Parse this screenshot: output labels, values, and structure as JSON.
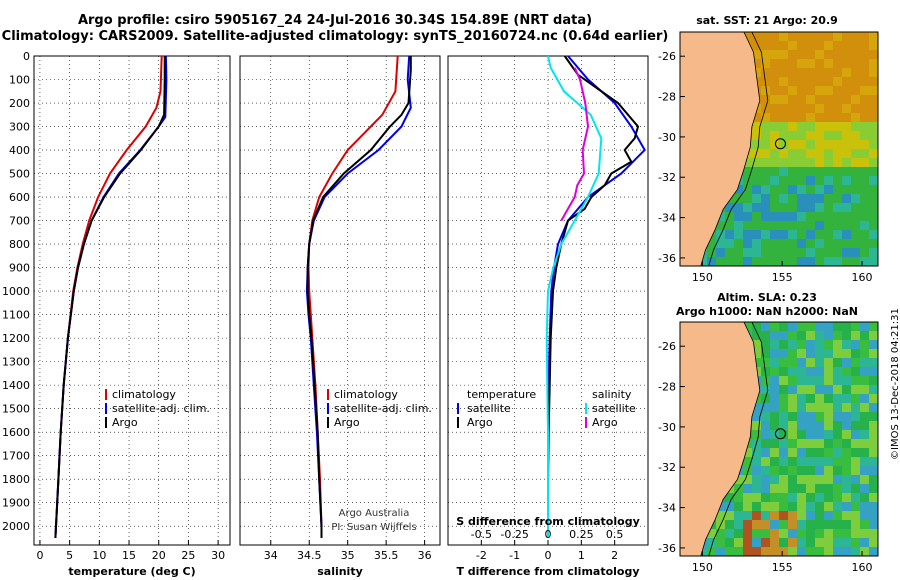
{
  "header": {
    "title_line1": "Argo profile: csiro 5905167_24 24-Jul-2016 30.34S 154.89E (NRT data)",
    "title_line2": "Climatology: CARS2009. Satellite-adjusted climatology: synTS_20160724.nc (0.64d earlier)"
  },
  "colors": {
    "climatology": "#dd0000",
    "satellite": "#0000ee",
    "argo": "#000000",
    "satellite_salinity": "#00e5f0",
    "argo_salinity": "#dd00dd",
    "land": "#f5b98a"
  },
  "chart_data": [
    {
      "type": "line",
      "name": "temperature",
      "xlabel": "temperature (deg C)",
      "ylabel": "",
      "xlim": [
        -1,
        32
      ],
      "ylim": [
        2080,
        0
      ],
      "xticks": [
        0,
        5,
        10,
        15,
        20,
        25,
        30
      ],
      "yticks": [
        0,
        100,
        200,
        300,
        400,
        500,
        600,
        700,
        800,
        900,
        1000,
        1100,
        1200,
        1300,
        1400,
        1500,
        1600,
        1700,
        1800,
        1900,
        2000
      ],
      "grid": true,
      "legend": [
        "climatology",
        "satellite-adj. clim.",
        "Argo"
      ],
      "series": [
        {
          "name": "climatology",
          "depth": [
            0,
            150,
            220,
            300,
            400,
            500,
            600,
            700,
            800,
            900,
            1000,
            1200,
            1400,
            1600,
            1800,
            2000,
            2050
          ],
          "values": [
            20.5,
            20.3,
            19.6,
            17.8,
            14.6,
            11.8,
            9.8,
            8.3,
            7.2,
            6.3,
            5.6,
            4.7,
            4.0,
            3.5,
            3.1,
            2.7,
            2.6
          ]
        },
        {
          "name": "satellite-adj. clim.",
          "depth": [
            0,
            100,
            260,
            300,
            400,
            500,
            600,
            700,
            800,
            900,
            1000,
            1200,
            1400,
            1600,
            1800,
            2000,
            2050
          ],
          "values": [
            21.2,
            21.3,
            21.1,
            20.0,
            16.9,
            13.3,
            10.7,
            8.7,
            7.4,
            6.4,
            5.7,
            4.7,
            4.0,
            3.5,
            3.1,
            2.7,
            2.6
          ]
        },
        {
          "name": "Argo",
          "depth": [
            0,
            100,
            250,
            300,
            400,
            500,
            600,
            700,
            800,
            900,
            1000,
            1200,
            1400,
            1600,
            1800,
            2000,
            2050
          ],
          "values": [
            21.0,
            21.0,
            20.9,
            20.0,
            17.0,
            13.5,
            10.8,
            8.7,
            7.4,
            6.4,
            5.7,
            4.7,
            4.0,
            3.5,
            3.1,
            2.7,
            2.6
          ]
        }
      ]
    },
    {
      "type": "line",
      "name": "salinity",
      "xlabel": "salinity",
      "xlim": [
        33.6,
        36.2
      ],
      "ylim": [
        2080,
        0
      ],
      "xticks": [
        34,
        34.5,
        35,
        35.5,
        36
      ],
      "grid": true,
      "legend": [
        "climatology",
        "satellite-adj. clim.",
        "Argo"
      ],
      "annotation": [
        "Argo Australia",
        "PI: Susan Wijffels"
      ],
      "series": [
        {
          "name": "climatology",
          "depth": [
            0,
            150,
            250,
            300,
            400,
            500,
            600,
            700,
            800,
            900,
            1000,
            1100,
            1200,
            1400,
            1600,
            1800,
            2000,
            2050
          ],
          "values": [
            35.65,
            35.62,
            35.45,
            35.3,
            35.0,
            34.8,
            34.63,
            34.54,
            34.5,
            34.49,
            34.5,
            34.52,
            34.54,
            34.58,
            34.61,
            34.64,
            34.66,
            34.66
          ]
        },
        {
          "name": "satellite-adj. clim.",
          "depth": [
            0,
            100,
            220,
            300,
            400,
            500,
            600,
            700,
            800,
            900,
            1000,
            1100,
            1200,
            1400,
            1600,
            1800,
            2000,
            2050
          ],
          "values": [
            35.8,
            35.78,
            35.82,
            35.7,
            35.4,
            35.0,
            34.7,
            34.56,
            34.5,
            34.48,
            34.47,
            34.49,
            34.52,
            34.56,
            34.6,
            34.63,
            34.66,
            34.66
          ]
        },
        {
          "name": "Argo",
          "depth": [
            0,
            60,
            200,
            250,
            300,
            400,
            500,
            600,
            700,
            800,
            900,
            1000,
            1100,
            1200,
            1400,
            1600,
            1800,
            2000,
            2050
          ],
          "values": [
            35.82,
            35.82,
            35.79,
            35.7,
            35.55,
            35.3,
            34.95,
            34.68,
            34.55,
            34.5,
            34.48,
            34.48,
            34.5,
            34.53,
            34.57,
            34.61,
            34.63,
            34.66,
            34.66
          ]
        }
      ]
    },
    {
      "type": "line",
      "name": "difference from climatology",
      "xlabel": "T difference from climatology",
      "xlabel_secondary": "S difference from climatology",
      "xlim": [
        -3.0,
        3.0
      ],
      "ylim": [
        2080,
        0
      ],
      "xticks": [
        -2,
        -1,
        0,
        1,
        2
      ],
      "xticks_secondary": [
        "-0.5",
        "-0.25",
        "0",
        "0.25",
        "0.5"
      ],
      "legend_temperature": [
        "temperature",
        "satellite",
        "Argo"
      ],
      "legend_salinity": [
        "salinity",
        "satellite",
        "Argo"
      ],
      "series": [
        {
          "name": "temperature satellite",
          "depth": [
            0,
            100,
            200,
            300,
            400,
            500,
            600,
            700,
            800,
            900,
            1000,
            1200,
            1400,
            1600,
            1800,
            2000,
            2050
          ],
          "values": [
            0.6,
            1.2,
            2.0,
            2.5,
            2.9,
            2.2,
            1.2,
            0.6,
            0.3,
            0.18,
            0.1,
            0.05,
            0.02,
            0.01,
            0.0,
            0.0,
            0.0
          ]
        },
        {
          "name": "temperature Argo",
          "depth": [
            0,
            80,
            200,
            300,
            350,
            400,
            450,
            500,
            550,
            600,
            650,
            700,
            800,
            900,
            1000,
            1200,
            1400,
            1600,
            1800,
            2000,
            2050
          ],
          "values": [
            0.5,
            0.9,
            2.1,
            2.7,
            2.6,
            2.3,
            2.5,
            1.9,
            1.7,
            1.3,
            1.1,
            0.6,
            0.4,
            0.25,
            0.15,
            0.08,
            0.05,
            0.02,
            0.0,
            0.0,
            0.0
          ]
        },
        {
          "name": "salinity satellite",
          "depth": [
            0,
            50,
            150,
            250,
            350,
            500,
            600,
            700,
            800,
            900,
            1000,
            1200,
            1400,
            1600,
            1800,
            2000,
            2050
          ],
          "values": [
            0.0,
            0.02,
            0.12,
            0.32,
            0.4,
            0.38,
            0.3,
            0.2,
            0.1,
            0.04,
            0.0,
            -0.01,
            -0.005,
            0.0,
            0.0,
            0.0,
            0.0
          ]
        },
        {
          "name": "salinity Argo",
          "depth": [
            50,
            100,
            200,
            300,
            400,
            500,
            550,
            600,
            650,
            700
          ],
          "values": [
            0.2,
            0.24,
            0.28,
            0.3,
            0.26,
            0.27,
            0.22,
            0.2,
            0.15,
            0.1
          ]
        }
      ]
    },
    {
      "type": "heatmap",
      "name": "sat SST map",
      "title": "sat. SST: 21 Argo: 20.9",
      "xticks": [
        150,
        155,
        160
      ],
      "yticks": [
        -26,
        -28,
        -30,
        -32,
        -34,
        -36
      ],
      "xlim": [
        148.6,
        161.0
      ],
      "ylim": [
        -36.4,
        -24.8
      ],
      "marker": {
        "lon": 154.89,
        "lat": -30.34
      }
    },
    {
      "type": "heatmap",
      "name": "altimeter SLA map",
      "title_line1": "Altim. SLA: 0.23",
      "title_line2": "Argo h1000: NaN h2000: NaN",
      "xticks": [
        150,
        155,
        160
      ],
      "yticks": [
        -26,
        -28,
        -30,
        -32,
        -34,
        -36
      ],
      "xlim": [
        148.6,
        161.0
      ],
      "ylim": [
        -36.4,
        -24.8
      ],
      "marker": {
        "lon": 154.89,
        "lat": -30.34
      }
    }
  ],
  "footer": {
    "stamp": "©IMOS 13-Dec-2018 04:21:31"
  }
}
